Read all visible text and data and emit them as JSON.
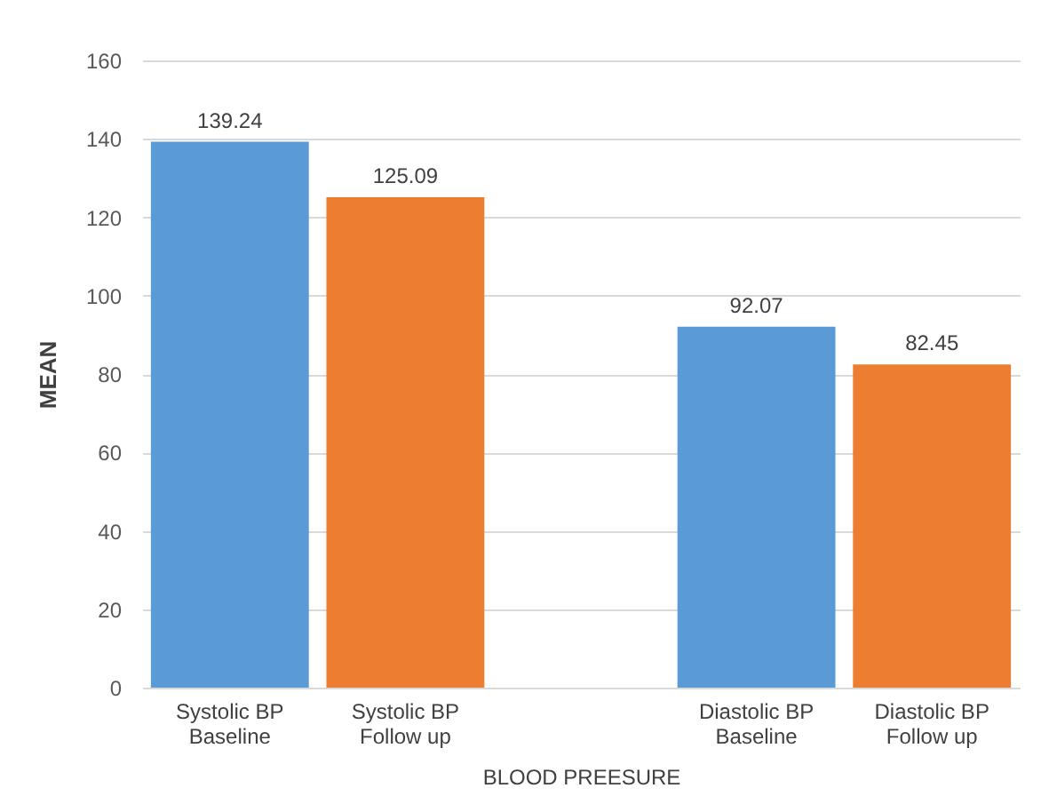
{
  "chart_data": {
    "type": "bar",
    "xlabel": "BLOOD PREESURE",
    "ylabel": "MEAN",
    "categories": [
      "Systolic BP\nBaseline",
      "Systolic BP\nFollow up",
      null,
      "Diastolic BP\nBaseline",
      "Diastolic BP\nFollow up"
    ],
    "values": [
      139.24,
      125.09,
      null,
      92.07,
      82.45
    ],
    "colors": [
      "#5b9bd5",
      "#ed7d31",
      null,
      "#5b9bd5",
      "#ed7d31"
    ],
    "ylim": [
      0,
      160
    ],
    "yticks": [
      0,
      20,
      40,
      60,
      80,
      100,
      120,
      140,
      160
    ],
    "grid": "y",
    "data_labels": true
  }
}
